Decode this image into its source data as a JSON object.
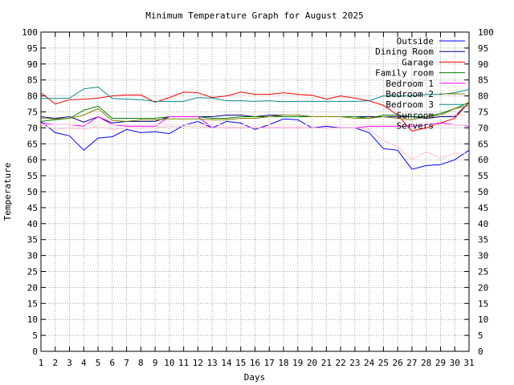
{
  "chart_data": {
    "type": "line",
    "title": "Minimum Temperature Graph for August 2025",
    "xlabel": "Days",
    "ylabel": "Temperature",
    "xlim": [
      1,
      31
    ],
    "ylim": [
      0,
      100
    ],
    "x_ticks": [
      1,
      2,
      3,
      4,
      5,
      6,
      7,
      8,
      9,
      10,
      11,
      12,
      13,
      14,
      15,
      16,
      17,
      18,
      19,
      20,
      21,
      22,
      23,
      24,
      25,
      26,
      27,
      28,
      29,
      30,
      31
    ],
    "y_ticks": [
      0,
      5,
      10,
      15,
      20,
      25,
      30,
      35,
      40,
      45,
      50,
      55,
      60,
      65,
      70,
      75,
      80,
      85,
      90,
      95,
      100
    ],
    "grid": true,
    "legend_position": "top-right",
    "series": [
      {
        "name": "Outside",
        "color": "#0000ff",
        "values": [
          72,
          68.5,
          67.5,
          63,
          66.8,
          67.2,
          69.5,
          68.5,
          68.8,
          68.2,
          70.8,
          72,
          70,
          72,
          71.5,
          69.5,
          71,
          72.8,
          72.5,
          70,
          70.5,
          70,
          70,
          68.5,
          63.5,
          63,
          57,
          58.2,
          58.5,
          60,
          63
        ]
      },
      {
        "name": "Dining Room",
        "color": "#00008b",
        "values": [
          73.5,
          73,
          73.5,
          71.8,
          73.5,
          71.5,
          72,
          72,
          72,
          73.5,
          73.5,
          73.5,
          73.5,
          74,
          74,
          73.5,
          74,
          74,
          74,
          73.5,
          73.5,
          73.5,
          73.5,
          73.5,
          73.5,
          73.5,
          73.5,
          73,
          73.5,
          73.5,
          78
        ]
      },
      {
        "name": "Garage",
        "color": "#ff0000",
        "values": [
          81,
          77.5,
          78.8,
          79,
          79.3,
          80,
          80.3,
          80.3,
          78,
          79.5,
          81.2,
          81,
          79.5,
          80,
          81.2,
          80.5,
          80.5,
          81,
          80.5,
          80.2,
          79,
          80,
          79.3,
          78.5,
          77,
          74,
          69,
          70,
          71.5,
          73,
          78
        ]
      },
      {
        "name": "Family room",
        "color": "#008000",
        "values": [
          72,
          72.5,
          73,
          75.5,
          76.8,
          73,
          73,
          73,
          73,
          73.5,
          73.5,
          73.5,
          73,
          73,
          73.5,
          73.5,
          73.5,
          73.5,
          73.5,
          73.5,
          73.5,
          73.5,
          73.5,
          73,
          74,
          74,
          73.5,
          73.5,
          74.5,
          76,
          78
        ]
      },
      {
        "name": "Bedroom 1",
        "color": "#ff00ff",
        "values": [
          71.5,
          71,
          71,
          70.5,
          73.5,
          71,
          70.5,
          70.5,
          70.5,
          73.5,
          73.5,
          73.5,
          70,
          70,
          70,
          70,
          70,
          70,
          70,
          70,
          70,
          70,
          70,
          70.5,
          70.5,
          70.5,
          70.5,
          71,
          71.5,
          71,
          70.5
        ]
      },
      {
        "name": "Bedroom 2",
        "color": "#808000",
        "values": [
          73,
          72.8,
          73,
          74,
          76,
          72.3,
          72,
          72.5,
          72.5,
          72.8,
          72.8,
          72.8,
          72.5,
          72.5,
          73,
          73,
          73.5,
          74,
          74,
          73.5,
          73.5,
          73.5,
          73,
          73,
          73.5,
          73,
          72.5,
          73.5,
          74,
          76,
          77
        ]
      },
      {
        "name": "Bedroom 3",
        "color": "#008b8b",
        "values": [
          79.2,
          79.2,
          79.3,
          82.2,
          82.8,
          79.2,
          79,
          78.8,
          78.3,
          78.3,
          78.3,
          79.5,
          79.3,
          78.5,
          78.5,
          78.3,
          78.5,
          78.2,
          78.3,
          78.3,
          78.3,
          78.3,
          78.3,
          78.5,
          80,
          80,
          80,
          80.5,
          80.5,
          81,
          82
        ]
      },
      {
        "name": "Sunroom",
        "color": "#ffc0cb",
        "values": [
          71,
          69.5,
          70,
          69.5,
          70.5,
          69.5,
          70,
          70,
          70,
          70.5,
          70.5,
          70.5,
          70,
          70,
          70,
          70,
          70,
          70,
          70,
          70,
          70,
          70,
          70,
          69.5,
          66,
          64,
          60,
          62.5,
          60.5,
          62,
          62
        ]
      },
      {
        "name": "Servers",
        "color": "#ffe4e1",
        "values": [
          71,
          71,
          71,
          71,
          71,
          71,
          71,
          71,
          71,
          71,
          71,
          71,
          71,
          71,
          71,
          71,
          71,
          71,
          71,
          71,
          71,
          71,
          71,
          71,
          71,
          71,
          71,
          71,
          71,
          71,
          71
        ]
      }
    ]
  }
}
